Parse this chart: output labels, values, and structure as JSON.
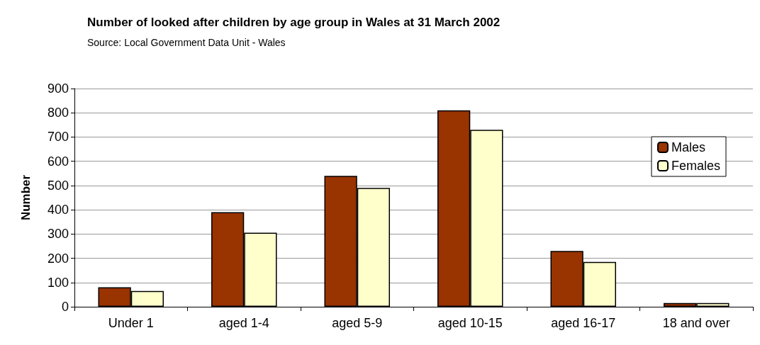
{
  "chart_data": {
    "type": "bar",
    "title": "Number of looked after children by age group in Wales at 31 March 2002",
    "subtitle": "Source: Local Government Data Unit - Wales",
    "ylabel": "Number",
    "categories": [
      "Under 1",
      "aged 1-4",
      "aged 5-9",
      "aged 10-15",
      "aged 16-17",
      "18 and over"
    ],
    "series": [
      {
        "name": "Males",
        "color": "#993300",
        "values": [
          80,
          390,
          540,
          810,
          230,
          15
        ]
      },
      {
        "name": "Females",
        "color": "#ffffcc",
        "values": [
          65,
          305,
          490,
          730,
          185,
          15
        ]
      }
    ],
    "ylim": [
      0,
      900
    ],
    "yticks": [
      0,
      100,
      200,
      300,
      400,
      500,
      600,
      700,
      800,
      900
    ],
    "grid": "y",
    "legend": "right"
  }
}
